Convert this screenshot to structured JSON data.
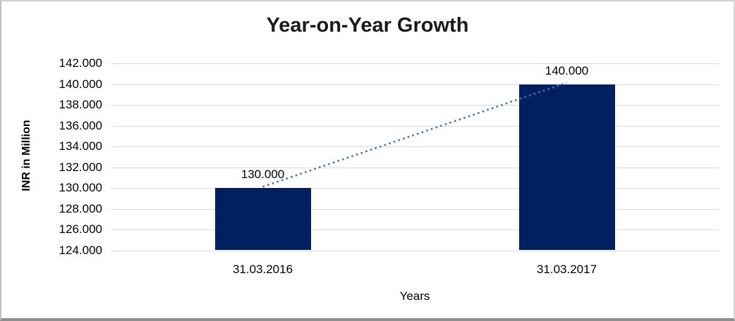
{
  "chart_data": {
    "type": "bar",
    "title": "Year-on-Year Growth",
    "xlabel": "Years",
    "ylabel": "INR in Million",
    "categories": [
      "31.03.2016",
      "31.03.2017"
    ],
    "values": [
      130000,
      140000
    ],
    "value_labels": [
      "130.000",
      "140.000"
    ],
    "ylim": [
      124000,
      142000
    ],
    "ytick_values": [
      124000,
      126000,
      128000,
      130000,
      132000,
      134000,
      136000,
      138000,
      140000,
      142000
    ],
    "ytick_labels": [
      "124.000",
      "126.000",
      "128.000",
      "130.000",
      "132.000",
      "134.000",
      "136.000",
      "138.000",
      "140.000",
      "142.000"
    ],
    "grid": true,
    "legend": "none",
    "trendline": {
      "style": "dotted",
      "between_values": [
        130000,
        140000
      ]
    },
    "colors": {
      "bar": "#02205F",
      "gridline": "#D9D9D9",
      "trendline": "#4472C4",
      "text": "#000000",
      "title": "#1A1A1A",
      "background": "#FFFFFF"
    }
  }
}
